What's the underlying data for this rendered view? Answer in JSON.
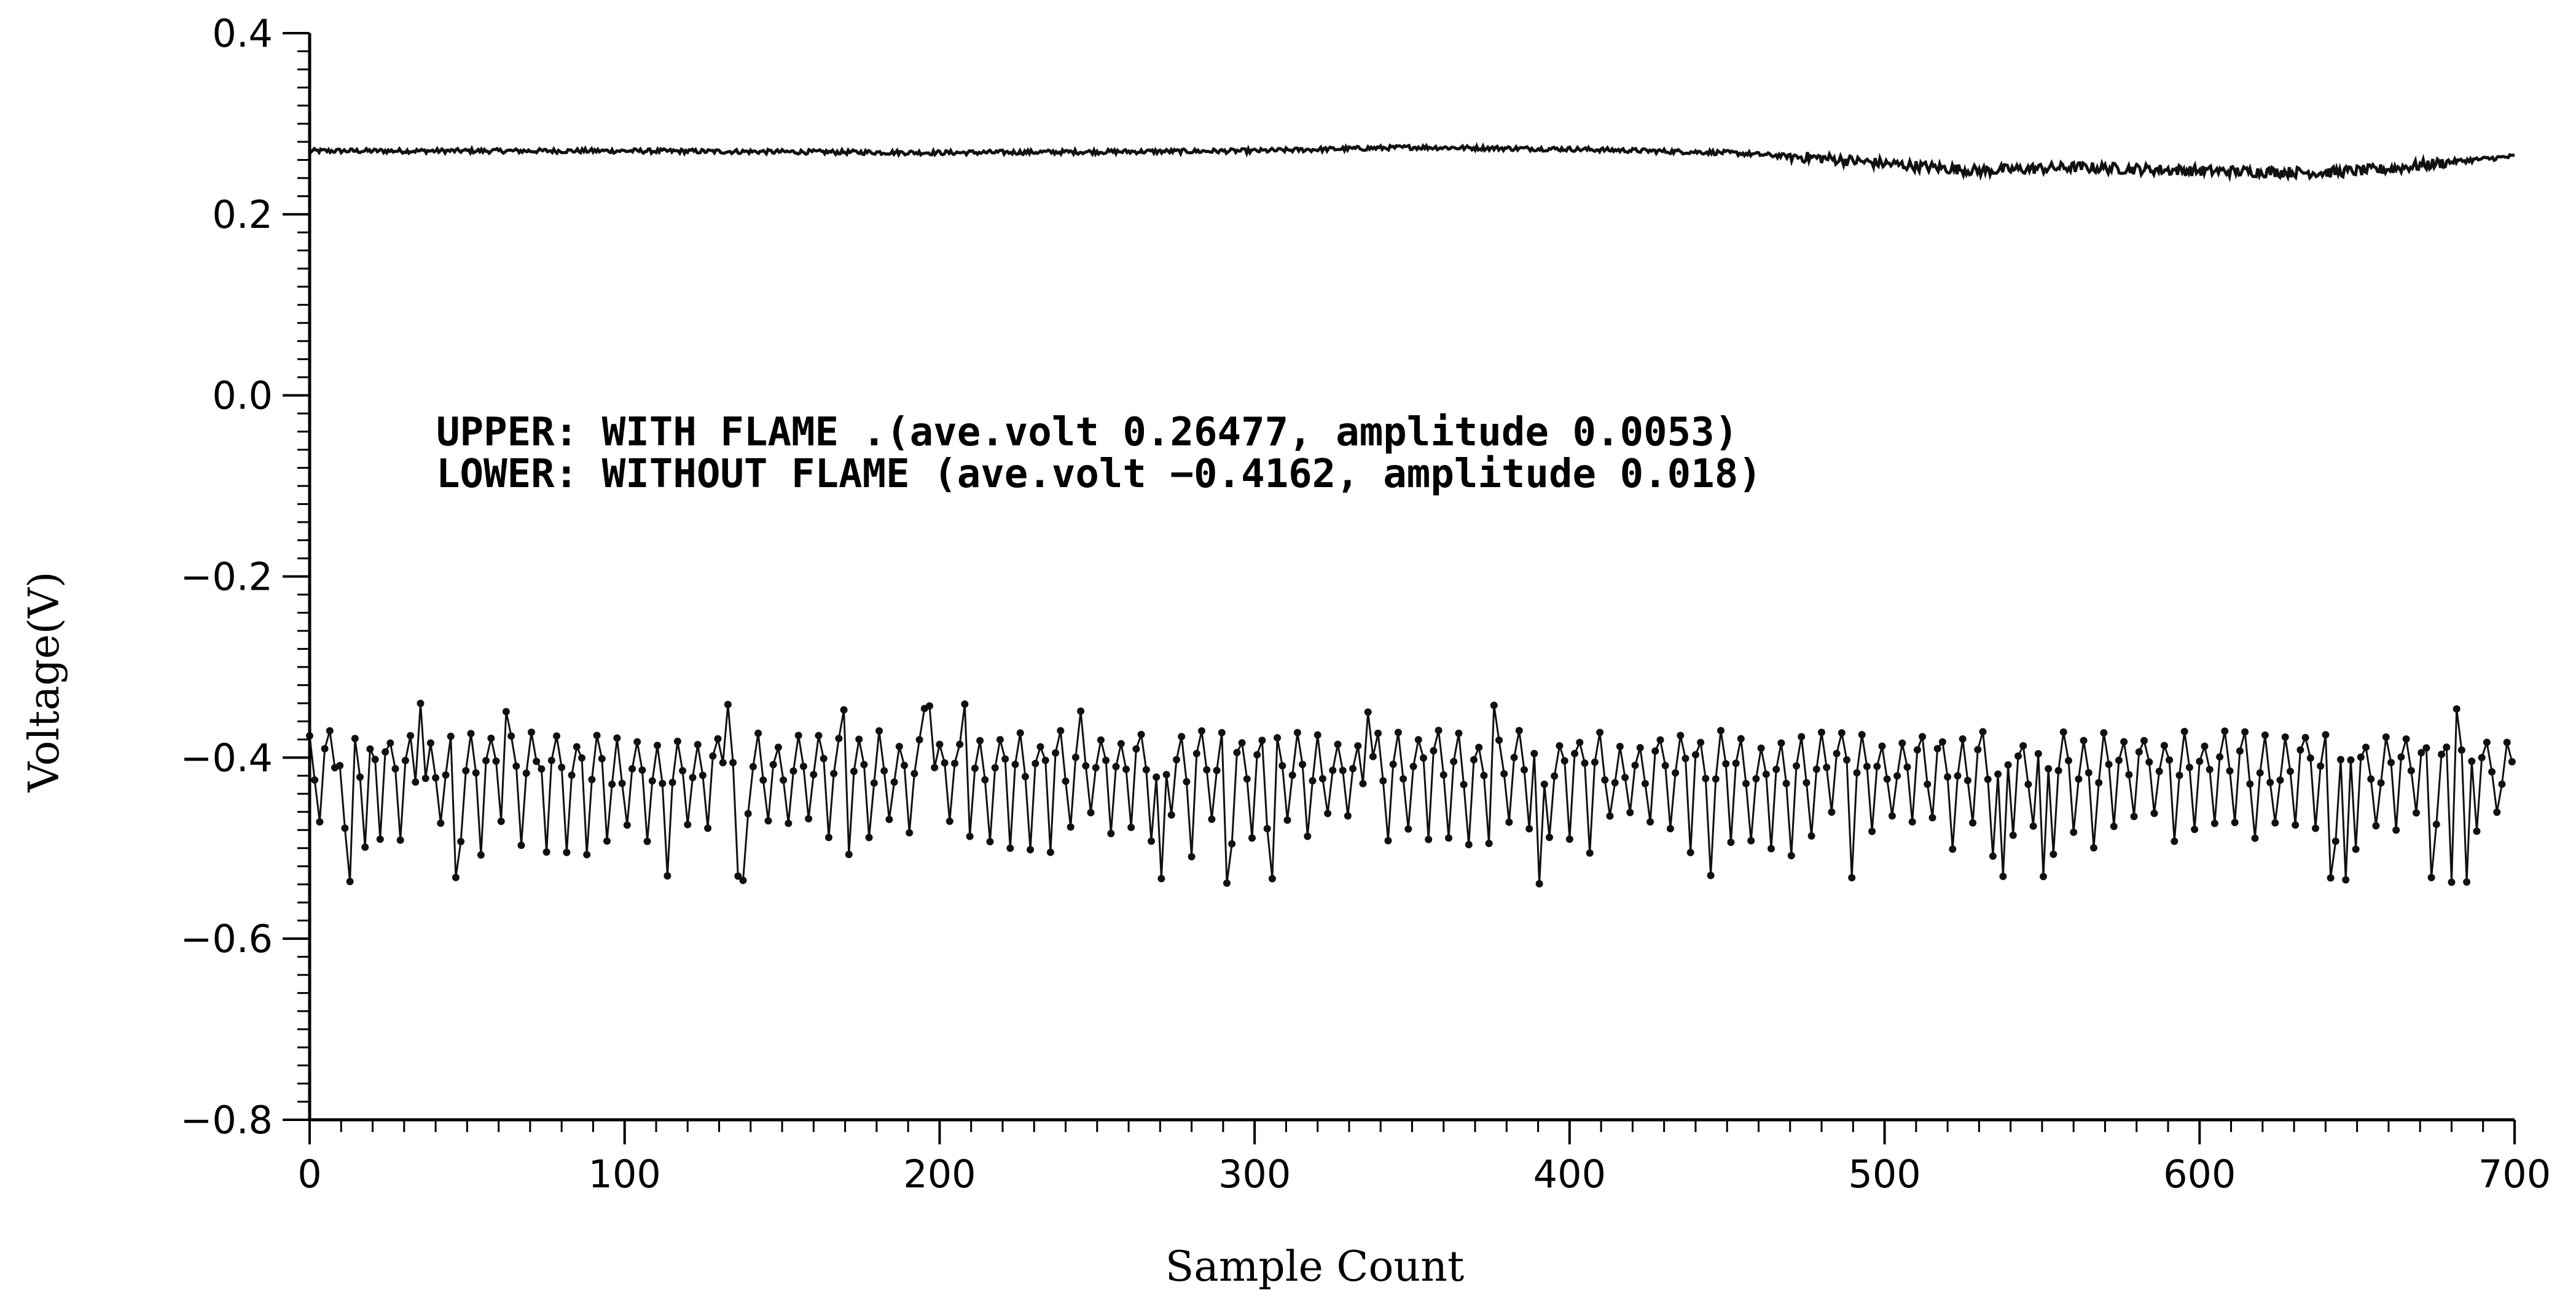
{
  "chart_data": {
    "type": "line",
    "xlabel": "Sample Count",
    "ylabel": "Voltage(V)",
    "xlim": [
      0,
      700
    ],
    "ylim": [
      -0.8,
      0.4
    ],
    "x_ticks": [
      0,
      100,
      200,
      300,
      400,
      500,
      600,
      700
    ],
    "x_tick_labels": [
      "0",
      "100",
      "200",
      "300",
      "400",
      "500",
      "600",
      "700"
    ],
    "y_ticks": [
      0.4,
      0.2,
      0.0,
      -0.2,
      -0.4,
      -0.6,
      -0.8
    ],
    "y_tick_labels": [
      "0.4",
      "0.2",
      "0.0",
      "−0.2",
      "−0.4",
      "−0.6",
      "−0.8"
    ],
    "grid": false,
    "annotations": [
      "UPPER: WITH FLAME .(ave.volt 0.26477, amplitude 0.0053)",
      "LOWER: WITHOUT FLAME (ave.volt −0.4162, amplitude 0.018)"
    ],
    "series": [
      {
        "key": "upper",
        "mean": 0.26477,
        "amplitude": 0.0053,
        "x_range": [
          0,
          700
        ],
        "profile": [
          [
            0,
            0.27
          ],
          [
            100,
            0.27
          ],
          [
            200,
            0.268
          ],
          [
            300,
            0.27
          ],
          [
            350,
            0.274
          ],
          [
            400,
            0.272
          ],
          [
            450,
            0.268
          ],
          [
            480,
            0.262
          ],
          [
            500,
            0.256
          ],
          [
            530,
            0.248
          ],
          [
            560,
            0.252
          ],
          [
            600,
            0.248
          ],
          [
            640,
            0.246
          ],
          [
            660,
            0.25
          ],
          [
            680,
            0.258
          ],
          [
            700,
            0.264
          ]
        ]
      },
      {
        "key": "lower",
        "mean": -0.4162,
        "amplitude": 0.018,
        "x_range": [
          0,
          700
        ],
        "spread": [
          -0.54,
          -0.34
        ],
        "markers": true
      }
    ]
  }
}
